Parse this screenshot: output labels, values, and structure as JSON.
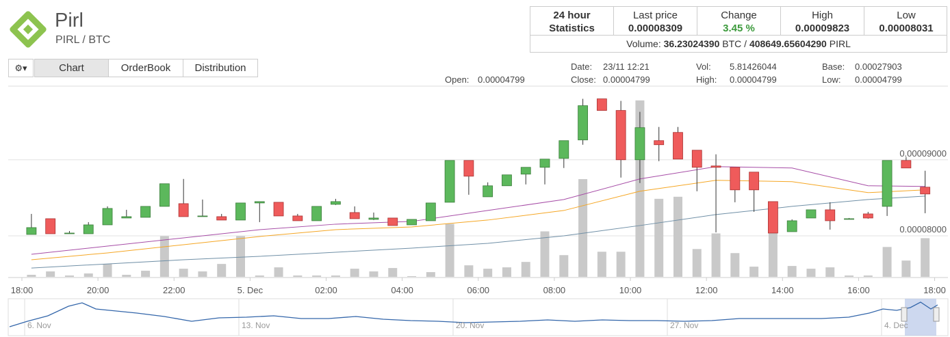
{
  "header": {
    "title": "Pirl",
    "pair": "PIRL / BTC"
  },
  "stats": {
    "heading": [
      "24 hour",
      "Statistics"
    ],
    "cells": [
      {
        "label": "Last price",
        "value": "0.00008309"
      },
      {
        "label": "Change",
        "value": "3.45 %"
      },
      {
        "label": "High",
        "value": "0.00009823"
      },
      {
        "label": "Low",
        "value": "0.00008031"
      }
    ],
    "volume": {
      "label": "Volume:",
      "btc": "36.23024390",
      "btc_unit": "BTC /",
      "pirl": "408649.65604290",
      "pirl_unit": "PIRL"
    }
  },
  "tabs": [
    "Chart",
    "OrderBook",
    "Distribution"
  ],
  "info": {
    "open": [
      "Open:",
      "0.00004799"
    ],
    "date": [
      "Date:",
      "23/11 12:21"
    ],
    "close": [
      "Close:",
      "0.00004799"
    ],
    "vol": [
      "Vol:",
      "5.81426044"
    ],
    "high": [
      "High:",
      "0.00004799"
    ],
    "base": [
      "Base:",
      "0.00027903"
    ],
    "low": [
      "Low:",
      "0.00004799"
    ]
  },
  "chart_data": {
    "type": "candlestick",
    "up_color": "#5cb85c",
    "down_color": "#ef5b5b",
    "volume_color": "#c9c9c9",
    "xlim": [
      -1.22,
      48.2
    ],
    "xticks": [
      {
        "value": -0.5,
        "label": "18:00"
      },
      {
        "value": 3.5,
        "label": "20:00"
      },
      {
        "value": 7.5,
        "label": "22:00"
      },
      {
        "value": 11.5,
        "label": "5. Dec"
      },
      {
        "value": 15.5,
        "label": "02:00"
      },
      {
        "value": 19.5,
        "label": "04:00"
      },
      {
        "value": 23.5,
        "label": "06:00"
      },
      {
        "value": 27.5,
        "label": "08:00"
      },
      {
        "value": 31.5,
        "label": "10:00"
      },
      {
        "value": 35.5,
        "label": "12:00"
      },
      {
        "value": 39.5,
        "label": "14:00"
      },
      {
        "value": 43.5,
        "label": "16:00"
      },
      {
        "value": 47.5,
        "label": "18:00"
      }
    ],
    "ylim": [
      7.46e-05,
      9.96e-05
    ],
    "yticks": [
      {
        "value": 8e-05,
        "label": "0.00008000"
      },
      {
        "value": 9e-05,
        "label": "0.00009000"
      }
    ],
    "grid": true,
    "y2lim": [
      0,
      280
    ],
    "open": [
      8.018e-05,
      8.225e-05,
      8.036e-05,
      8.027e-05,
      8.144e-05,
      8.234e-05,
      8.243e-05,
      8.387e-05,
      8.423e-05,
      8.261e-05,
      8.252e-05,
      8.207e-05,
      8.432e-05,
      8.441e-05,
      8.261e-05,
      8.198e-05,
      8.414e-05,
      8.306e-05,
      8.216e-05,
      8.234e-05,
      8.144e-05,
      8.198e-05,
      8.441e-05,
      8.991e-05,
      8.513e-05,
      8.658e-05,
      8.811e-05,
      8.901e-05,
      9.018e-05,
      9.261e-05,
      9.802e-05,
      9.649e-05,
      9e-05,
      9.252e-05,
      9.36e-05,
      9.126e-05,
      8.919e-05,
      8.901e-05,
      8.838e-05,
      8.45e-05,
      8.054e-05,
      8.234e-05,
      8.342e-05,
      8.225e-05,
      8.288e-05,
      8.387e-05,
      8.991e-05,
      8.64e-05
    ],
    "high": [
      8.288e-05,
      8.225e-05,
      8.063e-05,
      8.18e-05,
      8.387e-05,
      8.342e-05,
      8.387e-05,
      8.685e-05,
      8.748e-05,
      8.477e-05,
      8.288e-05,
      8.432e-05,
      8.45e-05,
      8.441e-05,
      8.288e-05,
      8.387e-05,
      8.486e-05,
      8.387e-05,
      8.306e-05,
      8.234e-05,
      8.216e-05,
      8.432e-05,
      8.991e-05,
      8.991e-05,
      8.703e-05,
      8.802e-05,
      8.901e-05,
      9.009e-05,
      9.252e-05,
      9.802e-05,
      9.802e-05,
      9.775e-05,
      9.631e-05,
      9.432e-05,
      9.432e-05,
      9.126e-05,
      9.072e-05,
      8.901e-05,
      8.838e-05,
      8.45e-05,
      8.216e-05,
      8.342e-05,
      8.441e-05,
      8.234e-05,
      8.315e-05,
      8.991e-05,
      9.036e-05,
      8.856e-05
    ],
    "low": [
      8.018e-05,
      8.027e-05,
      8.027e-05,
      8.027e-05,
      8.144e-05,
      8.234e-05,
      8.243e-05,
      8.387e-05,
      8.252e-05,
      8.252e-05,
      8.207e-05,
      8.207e-05,
      8.18e-05,
      8.261e-05,
      8.198e-05,
      8.198e-05,
      8.405e-05,
      8.225e-05,
      8.207e-05,
      8.135e-05,
      8.144e-05,
      8.198e-05,
      8.441e-05,
      8.54e-05,
      8.513e-05,
      8.658e-05,
      8.676e-05,
      8.676e-05,
      8.892e-05,
      9.198e-05,
      9.649e-05,
      8.766e-05,
      8.694e-05,
      8.982e-05,
      9.009e-05,
      8.586e-05,
      8.045e-05,
      8.441e-05,
      8.315e-05,
      8.036e-05,
      8.054e-05,
      8.234e-05,
      8.081e-05,
      8.216e-05,
      8.225e-05,
      8.261e-05,
      8.892e-05,
      8.297e-05
    ],
    "close": [
      8.108e-05,
      8.027e-05,
      8.036e-05,
      8.144e-05,
      8.36e-05,
      8.252e-05,
      8.387e-05,
      8.685e-05,
      8.252e-05,
      8.261e-05,
      8.207e-05,
      8.432e-05,
      8.45e-05,
      8.261e-05,
      8.198e-05,
      8.387e-05,
      8.45e-05,
      8.225e-05,
      8.234e-05,
      8.135e-05,
      8.216e-05,
      8.432e-05,
      8.991e-05,
      8.784e-05,
      8.658e-05,
      8.802e-05,
      8.901e-05,
      9.009e-05,
      9.252e-05,
      9.712e-05,
      9.649e-05,
      9e-05,
      9.423e-05,
      9.198e-05,
      9.009e-05,
      8.901e-05,
      8.901e-05,
      8.604e-05,
      8.604e-05,
      8.036e-05,
      8.198e-05,
      8.342e-05,
      8.198e-05,
      8.225e-05,
      8.234e-05,
      8.991e-05,
      8.892e-05,
      8.55e-05
    ],
    "volume": [
      3,
      8,
      2,
      5,
      19,
      3,
      9,
      60,
      12,
      8,
      19,
      60,
      2,
      14,
      2,
      2,
      2,
      12,
      8,
      13,
      1,
      7,
      78,
      17,
      12,
      14,
      22,
      67,
      32,
      144,
      37,
      37,
      260,
      115,
      118,
      41,
      64,
      35,
      15,
      110,
      16,
      12,
      14,
      2,
      2,
      44,
      24,
      57
    ],
    "lines": [
      {
        "color": "#a64ca6",
        "x": [
          0,
          4,
          8,
          12,
          16,
          20,
          24,
          28,
          32,
          36,
          40,
          44,
          47
        ],
        "values": [
          7.757e-05,
          7.865e-05,
          7.973e-05,
          8.081e-05,
          8.153e-05,
          8.189e-05,
          8.333e-05,
          8.477e-05,
          8.748e-05,
          8.91e-05,
          8.892e-05,
          8.658e-05,
          8.649e-05
        ]
      },
      {
        "color": "#f5a623",
        "x": [
          0,
          4,
          8,
          12,
          16,
          20,
          24,
          28,
          32,
          36,
          40,
          44,
          47
        ],
        "values": [
          7.685e-05,
          7.775e-05,
          7.883e-05,
          7.991e-05,
          8.081e-05,
          8.117e-05,
          8.207e-05,
          8.333e-05,
          8.586e-05,
          8.73e-05,
          8.712e-05,
          8.568e-05,
          8.604e-05
        ]
      },
      {
        "color": "#6f8fa6",
        "x": [
          0,
          4,
          8,
          12,
          16,
          20,
          24,
          28,
          32,
          36,
          40,
          44,
          47
        ],
        "values": [
          7.576e-05,
          7.63e-05,
          7.685e-05,
          7.73e-05,
          7.784e-05,
          7.838e-05,
          7.901e-05,
          8e-05,
          8.135e-05,
          8.279e-05,
          8.387e-05,
          8.477e-05,
          8.522e-05
        ]
      }
    ]
  },
  "navigator": {
    "labels": [
      "6. Nov",
      "13. Nov",
      "20. Nov",
      "27. Nov",
      "4. Dec"
    ]
  }
}
